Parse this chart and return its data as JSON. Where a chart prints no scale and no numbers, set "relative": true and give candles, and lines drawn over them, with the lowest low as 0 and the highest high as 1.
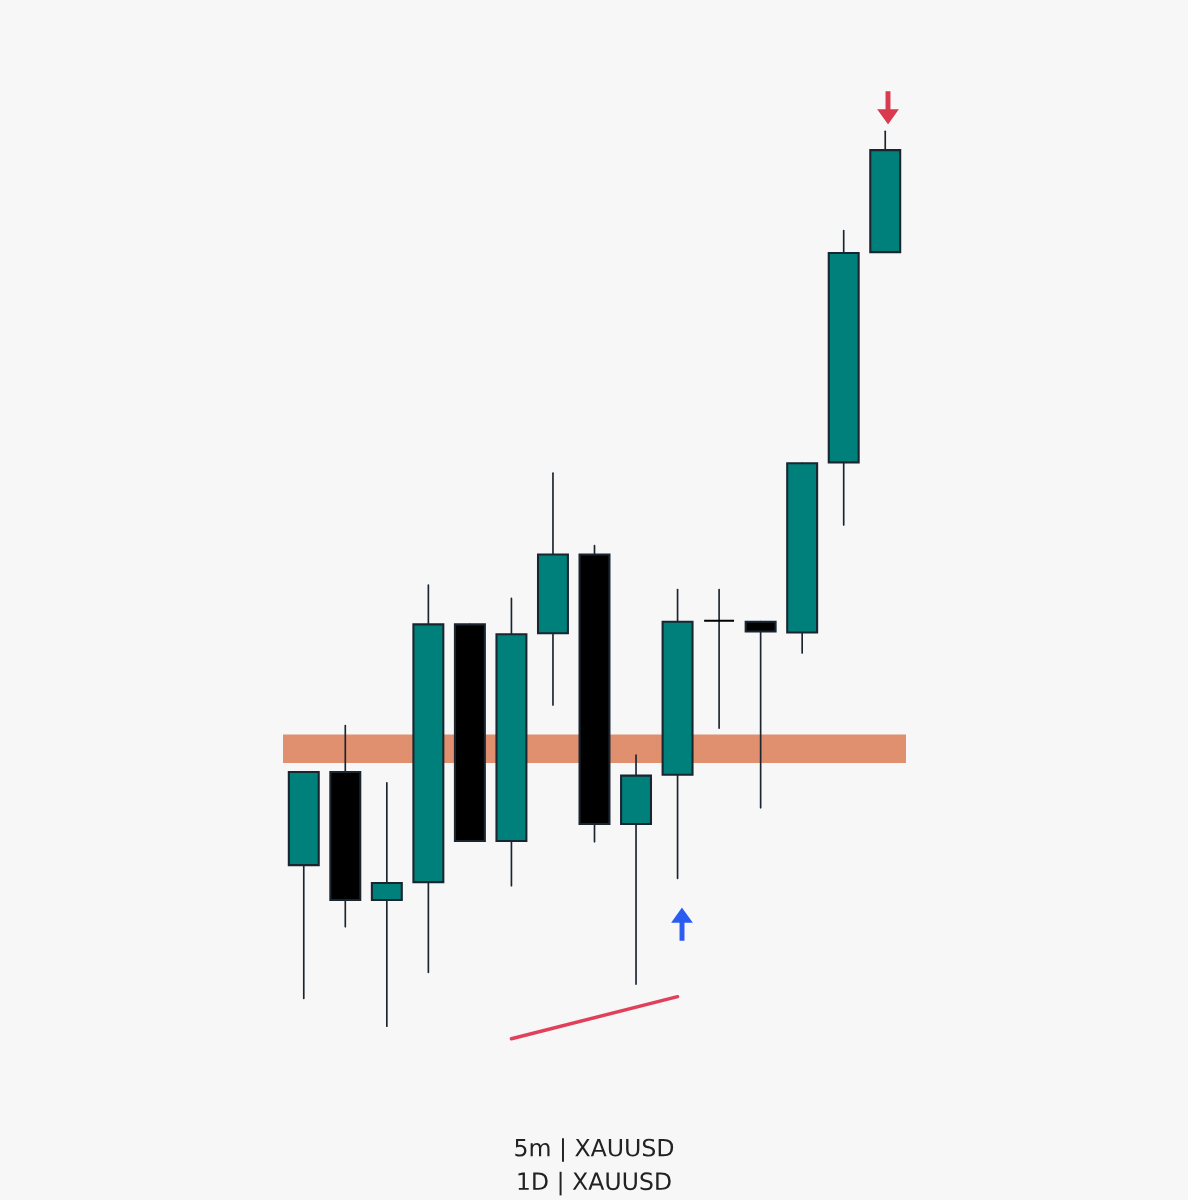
{
  "chart_data": {
    "type": "candlestick",
    "relative": true,
    "categories": [
      null,
      null,
      null,
      null,
      null,
      null,
      null,
      null,
      null,
      null,
      null,
      null,
      null,
      null,
      null
    ],
    "ohlc": [
      [
        0.18,
        0.284,
        0.031,
        0.284
      ],
      [
        0.284,
        0.336,
        0.111,
        0.141
      ],
      [
        0.141,
        0.272,
        0.0,
        0.16
      ],
      [
        0.161,
        0.493,
        0.06,
        0.449
      ],
      [
        0.449,
        0.449,
        0.207,
        0.207
      ],
      [
        0.207,
        0.478,
        0.157,
        0.438
      ],
      [
        0.439,
        0.618,
        0.359,
        0.527
      ],
      [
        0.527,
        0.537,
        0.206,
        0.226
      ],
      [
        0.226,
        0.303,
        0.047,
        0.28
      ],
      [
        0.281,
        0.488,
        0.165,
        0.452
      ],
      [
        0.453,
        0.488,
        0.333,
        0.453
      ],
      [
        0.452,
        0.452,
        0.244,
        0.441
      ],
      [
        0.44,
        0.629,
        0.417,
        0.629
      ],
      [
        0.63,
        0.889,
        0.56,
        0.864
      ],
      [
        0.865,
        1.0,
        0.865,
        0.979
      ]
    ],
    "colors": [
      "#00807a",
      "#000000",
      "#00807a",
      "#00807a",
      "#000000",
      "#00807a",
      "#00807a",
      "#000000",
      "#00807a",
      "#00807a",
      "#000000",
      "#000000",
      "#00807a",
      "#00807a",
      "#00807a"
    ],
    "series": [
      {
        "type": "line",
        "color": "#e0405a",
        "values": [
          null,
          null,
          null,
          null,
          null,
          -0.014,
          null,
          null,
          null,
          0.033,
          null,
          null,
          null,
          null,
          null
        ]
      }
    ],
    "bands": [
      {
        "axis": "y",
        "from": 0.294,
        "to": 0.326,
        "color": "#e0906e"
      }
    ],
    "annotations": [
      "5m | XAUUSD",
      "1D | XAUUSD"
    ]
  }
}
